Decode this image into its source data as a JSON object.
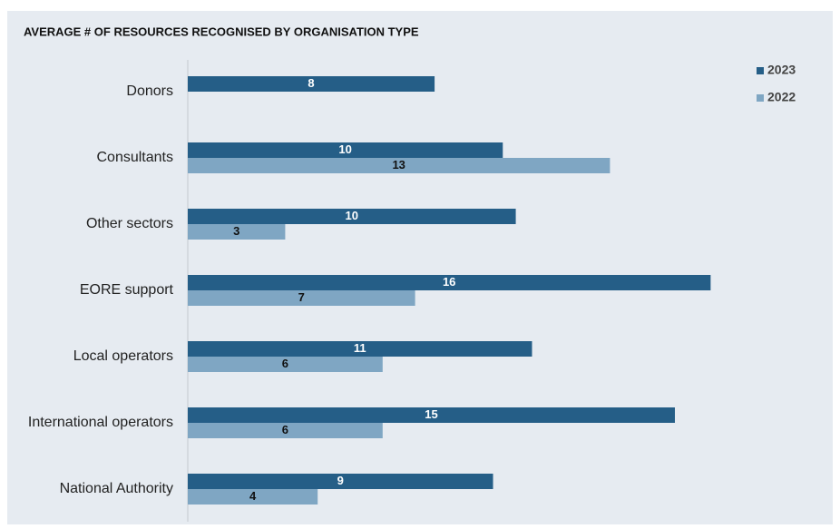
{
  "chart_data": {
    "type": "hbar",
    "title": "AVERAGE # OF RESOURCES RECOGNISED BY ORGANISATION TYPE",
    "categories": [
      "Donors",
      "Consultants",
      "Other sectors",
      "EORE support",
      "Local operators",
      "International operators",
      "National Authority"
    ],
    "series": [
      {
        "name": "2023",
        "color": "#255e87",
        "values": [
          7.6,
          9.7,
          10.1,
          16.1,
          10.6,
          15.0,
          9.4
        ],
        "value_labels": [
          "8",
          "10",
          "10",
          "16",
          "11",
          "15",
          "9"
        ]
      },
      {
        "name": "2022",
        "color": "#7fa6c3",
        "values": [
          null,
          13,
          3,
          7,
          6,
          6,
          4
        ],
        "value_labels": [
          null,
          "13",
          "3",
          "7",
          "6",
          "6",
          "4"
        ]
      }
    ],
    "xlim": [
      0,
      20
    ],
    "legend": "upper right"
  }
}
